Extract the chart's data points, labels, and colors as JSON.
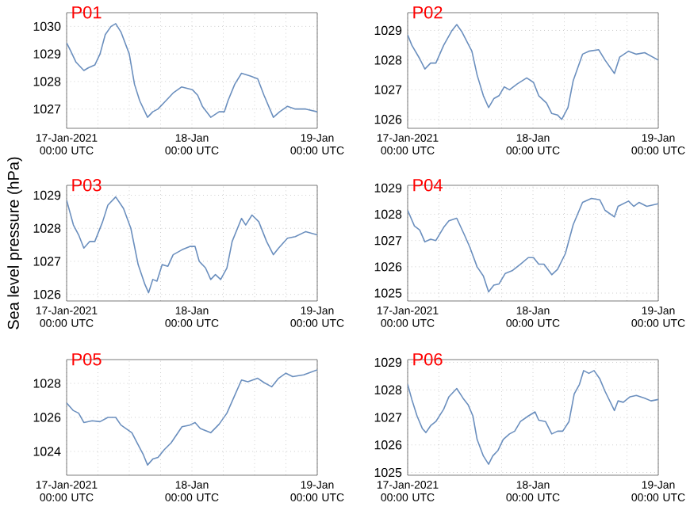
{
  "chart_data": [
    {
      "type": "line",
      "title": "P01",
      "color": "#6b8fbe",
      "grid": true,
      "xlim": [
        "2021-01-17T00:00",
        "2021-01-19T00:00"
      ],
      "ylim": [
        1026.3,
        1030.5
      ],
      "yticks": [
        1027,
        1028,
        1029,
        1030
      ],
      "xticks": [
        {
          "value": "2021-01-17T00:00",
          "label": "17-Jan-2021 00:00 UTC"
        },
        {
          "value": "2021-01-17T06:00",
          "label": null
        },
        {
          "value": "2021-01-17T12:00",
          "label": null
        },
        {
          "value": "2021-01-17T18:00",
          "label": null
        },
        {
          "value": "2021-01-18T00:00",
          "label": "18-Jan 00:00 UTC"
        },
        {
          "value": "2021-01-18T06:00",
          "label": null
        },
        {
          "value": "2021-01-18T12:00",
          "label": null
        },
        {
          "value": "2021-01-18T18:00",
          "label": null
        },
        {
          "value": "2021-01-19T00:00",
          "label": "19-Jan 00:00 UTC"
        }
      ],
      "x": [
        "2021-01-17T00:00",
        "2021-01-17T00:48",
        "2021-01-17T01:48",
        "2021-01-17T03:18",
        "2021-01-17T04:12",
        "2021-01-17T05:24",
        "2021-01-17T06:24",
        "2021-01-17T07:24",
        "2021-01-17T08:30",
        "2021-01-17T09:24",
        "2021-01-17T10:24",
        "2021-01-17T12:00",
        "2021-01-17T13:00",
        "2021-01-17T14:00",
        "2021-01-17T15:30",
        "2021-01-17T16:30",
        "2021-01-17T17:30",
        "2021-01-17T19:00",
        "2021-01-17T20:30",
        "2021-01-17T22:00",
        "2021-01-18T00:06",
        "2021-01-18T01:06",
        "2021-01-18T02:00",
        "2021-01-18T03:36",
        "2021-01-18T05:12",
        "2021-01-18T06:12",
        "2021-01-18T06:54",
        "2021-01-18T08:12",
        "2021-01-18T09:30",
        "2021-01-18T11:12",
        "2021-01-18T12:36",
        "2021-01-18T13:48",
        "2021-01-18T15:36",
        "2021-01-18T16:48",
        "2021-01-18T18:18",
        "2021-01-18T19:48",
        "2021-01-18T21:48",
        "2021-01-19T00:00"
      ],
      "values": [
        1029.4,
        1029.1,
        1028.7,
        1028.4,
        1028.5,
        1028.6,
        1029.0,
        1029.7,
        1030.0,
        1030.1,
        1029.8,
        1029.0,
        1027.9,
        1027.3,
        1026.7,
        1026.9,
        1027.0,
        1027.3,
        1027.6,
        1027.8,
        1027.7,
        1027.5,
        1027.1,
        1026.7,
        1026.9,
        1026.9,
        1027.3,
        1027.9,
        1028.3,
        1028.2,
        1028.1,
        1027.5,
        1026.7,
        1026.9,
        1027.1,
        1027.0,
        1027.0,
        1026.9
      ]
    },
    {
      "type": "line",
      "title": "P02",
      "color": "#6b8fbe",
      "grid": true,
      "xlim": [
        "2021-01-17T00:00",
        "2021-01-19T00:00"
      ],
      "ylim": [
        1025.7,
        1029.6
      ],
      "yticks": [
        1026,
        1027,
        1028,
        1029
      ],
      "xticks": [
        {
          "value": "2021-01-17T00:00",
          "label": "17-Jan-2021 00:00 UTC"
        },
        {
          "value": "2021-01-17T06:00",
          "label": null
        },
        {
          "value": "2021-01-17T12:00",
          "label": null
        },
        {
          "value": "2021-01-17T18:00",
          "label": null
        },
        {
          "value": "2021-01-18T00:00",
          "label": "18-Jan 00:00 UTC"
        },
        {
          "value": "2021-01-18T06:00",
          "label": null
        },
        {
          "value": "2021-01-18T12:00",
          "label": null
        },
        {
          "value": "2021-01-18T18:00",
          "label": null
        },
        {
          "value": "2021-01-19T00:00",
          "label": "19-Jan 00:00 UTC"
        }
      ],
      "x": [
        "2021-01-17T00:00",
        "2021-01-17T00:48",
        "2021-01-17T02:18",
        "2021-01-17T03:18",
        "2021-01-17T04:24",
        "2021-01-17T05:24",
        "2021-01-17T06:54",
        "2021-01-17T08:30",
        "2021-01-17T09:24",
        "2021-01-17T10:24",
        "2021-01-17T12:18",
        "2021-01-17T13:18",
        "2021-01-17T14:30",
        "2021-01-17T15:30",
        "2021-01-17T16:30",
        "2021-01-17T17:30",
        "2021-01-17T18:30",
        "2021-01-17T19:30",
        "2021-01-17T21:00",
        "2021-01-17T22:48",
        "2021-01-18T00:06",
        "2021-01-18T01:06",
        "2021-01-18T02:36",
        "2021-01-18T03:36",
        "2021-01-18T04:42",
        "2021-01-18T05:30",
        "2021-01-18T06:42",
        "2021-01-18T07:42",
        "2021-01-18T09:30",
        "2021-01-18T10:42",
        "2021-01-18T12:36",
        "2021-01-18T13:48",
        "2021-01-18T15:36",
        "2021-01-18T16:36",
        "2021-01-18T18:18",
        "2021-01-18T19:48",
        "2021-01-18T21:24",
        "2021-01-19T00:00"
      ],
      "values": [
        1028.85,
        1028.5,
        1028.05,
        1027.7,
        1027.9,
        1027.9,
        1028.5,
        1029.0,
        1029.2,
        1028.95,
        1028.3,
        1027.5,
        1026.8,
        1026.4,
        1026.7,
        1026.8,
        1027.1,
        1027.0,
        1027.2,
        1027.4,
        1027.25,
        1026.8,
        1026.55,
        1026.2,
        1026.15,
        1026.0,
        1026.4,
        1027.3,
        1028.2,
        1028.3,
        1028.35,
        1028.0,
        1027.55,
        1028.1,
        1028.3,
        1028.2,
        1028.25,
        1028.0
      ]
    },
    {
      "type": "line",
      "title": "P03",
      "ylabel": "Sea level pressure (hPa)",
      "color": "#6b8fbe",
      "grid": true,
      "xlim": [
        "2021-01-17T00:00",
        "2021-01-19T00:00"
      ],
      "ylim": [
        1025.8,
        1029.3
      ],
      "yticks": [
        1026,
        1027,
        1028,
        1029
      ],
      "xticks": [
        {
          "value": "2021-01-17T00:00",
          "label": "17-Jan-2021 00:00 UTC"
        },
        {
          "value": "2021-01-17T06:00",
          "label": null
        },
        {
          "value": "2021-01-17T12:00",
          "label": null
        },
        {
          "value": "2021-01-17T18:00",
          "label": null
        },
        {
          "value": "2021-01-18T00:00",
          "label": "18-Jan 00:00 UTC"
        },
        {
          "value": "2021-01-18T06:00",
          "label": null
        },
        {
          "value": "2021-01-18T12:00",
          "label": null
        },
        {
          "value": "2021-01-18T18:00",
          "label": null
        },
        {
          "value": "2021-01-19T00:00",
          "label": "19-Jan 00:00 UTC"
        }
      ],
      "x": [
        "2021-01-17T00:00",
        "2021-01-17T01:18",
        "2021-01-17T02:18",
        "2021-01-17T03:18",
        "2021-01-17T04:24",
        "2021-01-17T05:24",
        "2021-01-17T06:54",
        "2021-01-17T07:54",
        "2021-01-17T09:24",
        "2021-01-17T10:54",
        "2021-01-17T12:18",
        "2021-01-17T13:42",
        "2021-01-17T15:00",
        "2021-01-17T15:42",
        "2021-01-17T16:30",
        "2021-01-17T17:18",
        "2021-01-17T18:18",
        "2021-01-17T19:24",
        "2021-01-17T20:24",
        "2021-01-17T22:06",
        "2021-01-17T23:36",
        "2021-01-18T00:36",
        "2021-01-18T01:24",
        "2021-01-18T02:36",
        "2021-01-18T03:36",
        "2021-01-18T04:30",
        "2021-01-18T05:30",
        "2021-01-18T06:42",
        "2021-01-18T07:42",
        "2021-01-18T09:30",
        "2021-01-18T10:18",
        "2021-01-18T11:30",
        "2021-01-18T12:48",
        "2021-01-18T14:18",
        "2021-01-18T15:36",
        "2021-01-18T16:36",
        "2021-01-18T18:18",
        "2021-01-18T19:48",
        "2021-01-18T21:48",
        "2021-01-19T00:00"
      ],
      "values": [
        1028.85,
        1028.1,
        1027.8,
        1027.4,
        1027.6,
        1027.6,
        1028.2,
        1028.7,
        1028.95,
        1028.6,
        1028.0,
        1026.9,
        1026.3,
        1026.05,
        1026.45,
        1026.4,
        1026.9,
        1026.85,
        1027.2,
        1027.35,
        1027.45,
        1027.45,
        1027.0,
        1026.8,
        1026.45,
        1026.6,
        1026.45,
        1026.8,
        1027.6,
        1028.3,
        1028.1,
        1028.4,
        1028.2,
        1027.6,
        1027.2,
        1027.4,
        1027.7,
        1027.75,
        1027.9,
        1027.8
      ]
    },
    {
      "type": "line",
      "title": "P04",
      "color": "#6b8fbe",
      "grid": true,
      "xlim": [
        "2021-01-17T00:00",
        "2021-01-19T00:00"
      ],
      "ylim": [
        1024.7,
        1029.1
      ],
      "yticks": [
        1025,
        1026,
        1027,
        1028,
        1029
      ],
      "xticks": [
        {
          "value": "2021-01-17T00:00",
          "label": "17-Jan-2021 00:00 UTC"
        },
        {
          "value": "2021-01-17T06:00",
          "label": null
        },
        {
          "value": "2021-01-17T12:00",
          "label": null
        },
        {
          "value": "2021-01-17T18:00",
          "label": null
        },
        {
          "value": "2021-01-18T00:00",
          "label": "18-Jan 00:00 UTC"
        },
        {
          "value": "2021-01-18T06:00",
          "label": null
        },
        {
          "value": "2021-01-18T12:00",
          "label": null
        },
        {
          "value": "2021-01-18T18:00",
          "label": null
        },
        {
          "value": "2021-01-19T00:00",
          "label": "19-Jan 00:00 UTC"
        }
      ],
      "x": [
        "2021-01-17T00:00",
        "2021-01-17T01:18",
        "2021-01-17T02:18",
        "2021-01-17T03:18",
        "2021-01-17T04:24",
        "2021-01-17T05:24",
        "2021-01-17T06:54",
        "2021-01-17T07:54",
        "2021-01-17T09:24",
        "2021-01-17T10:54",
        "2021-01-17T11:54",
        "2021-01-17T13:18",
        "2021-01-17T14:30",
        "2021-01-17T15:30",
        "2021-01-17T16:30",
        "2021-01-17T17:30",
        "2021-01-17T18:42",
        "2021-01-17T20:00",
        "2021-01-17T21:36",
        "2021-01-17T23:06",
        "2021-01-18T00:06",
        "2021-01-18T01:06",
        "2021-01-18T02:06",
        "2021-01-18T03:36",
        "2021-01-18T04:42",
        "2021-01-18T06:12",
        "2021-01-18T07:42",
        "2021-01-18T09:30",
        "2021-01-18T11:12",
        "2021-01-18T12:48",
        "2021-01-18T13:48",
        "2021-01-18T15:36",
        "2021-01-18T16:18",
        "2021-01-18T18:18",
        "2021-01-18T19:18",
        "2021-01-18T20:18",
        "2021-01-18T21:48",
        "2021-01-19T00:00"
      ],
      "values": [
        1028.15,
        1027.55,
        1027.4,
        1026.95,
        1027.05,
        1027.0,
        1027.5,
        1027.75,
        1027.85,
        1027.2,
        1026.75,
        1026.0,
        1025.65,
        1025.05,
        1025.3,
        1025.35,
        1025.75,
        1025.85,
        1026.1,
        1026.35,
        1026.35,
        1026.1,
        1026.1,
        1025.7,
        1025.9,
        1026.5,
        1027.6,
        1028.45,
        1028.6,
        1028.55,
        1028.15,
        1027.9,
        1028.3,
        1028.5,
        1028.3,
        1028.45,
        1028.3,
        1028.4
      ]
    },
    {
      "type": "line",
      "title": "P05",
      "color": "#6b8fbe",
      "grid": true,
      "xlim": [
        "2021-01-17T00:00",
        "2021-01-19T00:00"
      ],
      "ylim": [
        1022.6,
        1029.4
      ],
      "yticks": [
        1024,
        1026,
        1028
      ],
      "xticks": [
        {
          "value": "2021-01-17T00:00",
          "label": "17-Jan-2021 00:00 UTC"
        },
        {
          "value": "2021-01-17T06:00",
          "label": null
        },
        {
          "value": "2021-01-17T12:00",
          "label": null
        },
        {
          "value": "2021-01-17T18:00",
          "label": null
        },
        {
          "value": "2021-01-18T00:00",
          "label": "18-Jan 00:00 UTC"
        },
        {
          "value": "2021-01-18T06:00",
          "label": null
        },
        {
          "value": "2021-01-18T12:00",
          "label": null
        },
        {
          "value": "2021-01-18T18:00",
          "label": null
        },
        {
          "value": "2021-01-19T00:00",
          "label": "19-Jan 00:00 UTC"
        }
      ],
      "x": [
        "2021-01-17T00:00",
        "2021-01-17T01:18",
        "2021-01-17T02:18",
        "2021-01-17T03:18",
        "2021-01-17T04:54",
        "2021-01-17T06:24",
        "2021-01-17T07:54",
        "2021-01-17T09:24",
        "2021-01-17T10:24",
        "2021-01-17T12:30",
        "2021-01-17T13:30",
        "2021-01-17T14:42",
        "2021-01-17T15:30",
        "2021-01-17T16:30",
        "2021-01-17T17:30",
        "2021-01-17T18:42",
        "2021-01-17T20:00",
        "2021-01-17T22:06",
        "2021-01-17T23:36",
        "2021-01-18T00:36",
        "2021-01-18T01:36",
        "2021-01-18T03:36",
        "2021-01-18T05:12",
        "2021-01-18T06:42",
        "2021-01-18T08:12",
        "2021-01-18T09:30",
        "2021-01-18T10:42",
        "2021-01-18T12:36",
        "2021-01-18T13:48",
        "2021-01-18T15:18",
        "2021-01-18T16:36",
        "2021-01-18T18:00",
        "2021-01-18T19:18",
        "2021-01-18T21:24",
        "2021-01-19T00:00"
      ],
      "values": [
        1026.85,
        1026.4,
        1026.25,
        1025.7,
        1025.8,
        1025.75,
        1026.0,
        1026.0,
        1025.55,
        1025.1,
        1024.5,
        1023.8,
        1023.2,
        1023.55,
        1023.65,
        1024.1,
        1024.5,
        1025.45,
        1025.55,
        1025.7,
        1025.35,
        1025.1,
        1025.6,
        1026.25,
        1027.3,
        1028.2,
        1028.1,
        1028.3,
        1028.05,
        1027.8,
        1028.3,
        1028.6,
        1028.4,
        1028.5,
        1028.8
      ]
    },
    {
      "type": "line",
      "title": "P06",
      "color": "#6b8fbe",
      "grid": true,
      "xlim": [
        "2021-01-17T00:00",
        "2021-01-19T00:00"
      ],
      "ylim": [
        1024.9,
        1029.1
      ],
      "yticks": [
        1025,
        1026,
        1027,
        1028,
        1029
      ],
      "xticks": [
        {
          "value": "2021-01-17T00:00",
          "label": "17-Jan-2021 00:00 UTC"
        },
        {
          "value": "2021-01-17T06:00",
          "label": null
        },
        {
          "value": "2021-01-17T12:00",
          "label": null
        },
        {
          "value": "2021-01-17T18:00",
          "label": null
        },
        {
          "value": "2021-01-18T00:00",
          "label": "18-Jan 00:00 UTC"
        },
        {
          "value": "2021-01-18T06:00",
          "label": null
        },
        {
          "value": "2021-01-18T12:00",
          "label": null
        },
        {
          "value": "2021-01-18T18:00",
          "label": null
        },
        {
          "value": "2021-01-19T00:00",
          "label": "19-Jan 00:00 UTC"
        }
      ],
      "x": [
        "2021-01-17T00:00",
        "2021-01-17T00:48",
        "2021-01-17T01:48",
        "2021-01-17T02:48",
        "2021-01-17T03:30",
        "2021-01-17T04:24",
        "2021-01-17T05:24",
        "2021-01-17T06:54",
        "2021-01-17T07:54",
        "2021-01-17T09:24",
        "2021-01-17T10:36",
        "2021-01-17T11:36",
        "2021-01-17T12:30",
        "2021-01-17T13:18",
        "2021-01-17T14:30",
        "2021-01-17T15:30",
        "2021-01-17T16:18",
        "2021-01-17T17:18",
        "2021-01-17T18:18",
        "2021-01-17T19:30",
        "2021-01-17T20:30",
        "2021-01-17T21:36",
        "2021-01-17T23:06",
        "2021-01-18T00:24",
        "2021-01-18T01:06",
        "2021-01-18T02:24",
        "2021-01-18T03:36",
        "2021-01-18T04:42",
        "2021-01-18T05:42",
        "2021-01-18T06:54",
        "2021-01-18T07:54",
        "2021-01-18T08:54",
        "2021-01-18T09:42",
        "2021-01-18T10:42",
        "2021-01-18T11:42",
        "2021-01-18T12:48",
        "2021-01-18T13:48",
        "2021-01-18T15:36",
        "2021-01-18T16:18",
        "2021-01-18T17:18",
        "2021-01-18T18:36",
        "2021-01-18T19:48",
        "2021-01-18T21:24",
        "2021-01-18T22:36",
        "2021-01-19T00:00"
      ],
      "values": [
        1028.2,
        1027.65,
        1027.05,
        1026.6,
        1026.45,
        1026.7,
        1026.85,
        1027.3,
        1027.75,
        1028.05,
        1027.7,
        1027.45,
        1027.05,
        1026.2,
        1025.6,
        1025.3,
        1025.6,
        1025.8,
        1026.2,
        1026.4,
        1026.5,
        1026.85,
        1027.05,
        1027.2,
        1026.9,
        1026.85,
        1026.4,
        1026.5,
        1026.5,
        1026.85,
        1027.85,
        1028.2,
        1028.7,
        1028.6,
        1028.7,
        1028.4,
        1027.95,
        1027.25,
        1027.6,
        1027.55,
        1027.75,
        1027.8,
        1027.7,
        1027.6,
        1027.65
      ]
    }
  ]
}
